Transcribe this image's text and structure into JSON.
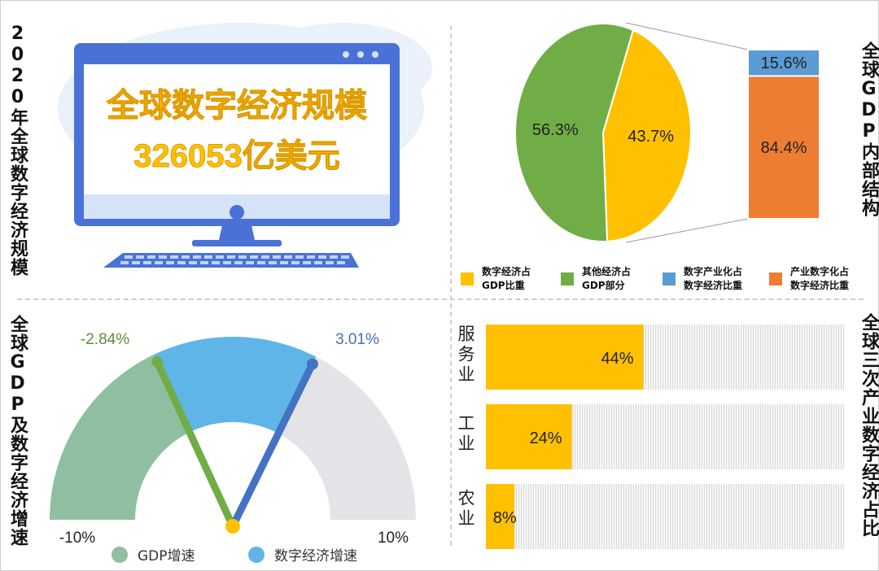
{
  "panels": {
    "top_left_title": "2020年全球数字经济规模",
    "monitor": {
      "line1": "全球数字经济规模",
      "line2": "326053亿美元"
    },
    "top_right_title": "全球GDP内部结构",
    "bottom_left_title": "全球GDP及数字经济增速",
    "bottom_right_title": "全球三次产业数字经济占比"
  },
  "colors": {
    "yellow": "#FFC000",
    "green": "#70AD47",
    "blue": "#5B9BD5",
    "orange": "#ED7D31",
    "gauge_green": "#8FBFA0",
    "gauge_blue": "#5FB5E8",
    "gauge_gray": "#E4E4E8",
    "needle_blue": "#4472C4"
  },
  "chart_data": [
    {
      "type": "pie",
      "slices": [
        {
          "label": "数字经济占GDP比重",
          "value": 43.7,
          "display": "43.7%",
          "color": "#FFC000"
        },
        {
          "label": "其他经济占GDP部分",
          "value": 56.3,
          "display": "56.3%",
          "color": "#70AD47"
        }
      ],
      "breakdown": [
        {
          "label": "数字产业化占数字经济比重",
          "value": 15.6,
          "display": "15.6%",
          "color": "#5B9BD5"
        },
        {
          "label": "产业数字化占数字经济比重",
          "value": 84.4,
          "display": "84.4%",
          "color": "#ED7D31"
        }
      ],
      "legend": [
        {
          "text": "数字经济占\nGDP比重",
          "color": "#FFC000"
        },
        {
          "text": "其他经济占\nGDP部分",
          "color": "#70AD47"
        },
        {
          "text": "数字产业化占\n数字经济比重",
          "color": "#5B9BD5"
        },
        {
          "text": "产业数字化占\n数字经济比重",
          "color": "#ED7D31"
        }
      ]
    },
    {
      "type": "gauge",
      "range": [
        -10,
        10
      ],
      "min_label": "-10%",
      "max_label": "10%",
      "series": [
        {
          "name": "GDP增速",
          "value": -2.84,
          "display": "-2.84%",
          "color": "#70AD47",
          "dot_color": "#8FBFA0"
        },
        {
          "name": "数字经济增速",
          "value": 3.01,
          "display": "3.01%",
          "color": "#4472C4",
          "dot_color": "#5FB5E8"
        }
      ]
    },
    {
      "type": "bar",
      "orientation": "horizontal",
      "categories": [
        "服务业",
        "工业",
        "农业"
      ],
      "values": [
        44,
        24,
        8
      ],
      "labels": [
        "44%",
        "24%",
        "8%"
      ],
      "xlim": [
        0,
        100
      ]
    }
  ]
}
